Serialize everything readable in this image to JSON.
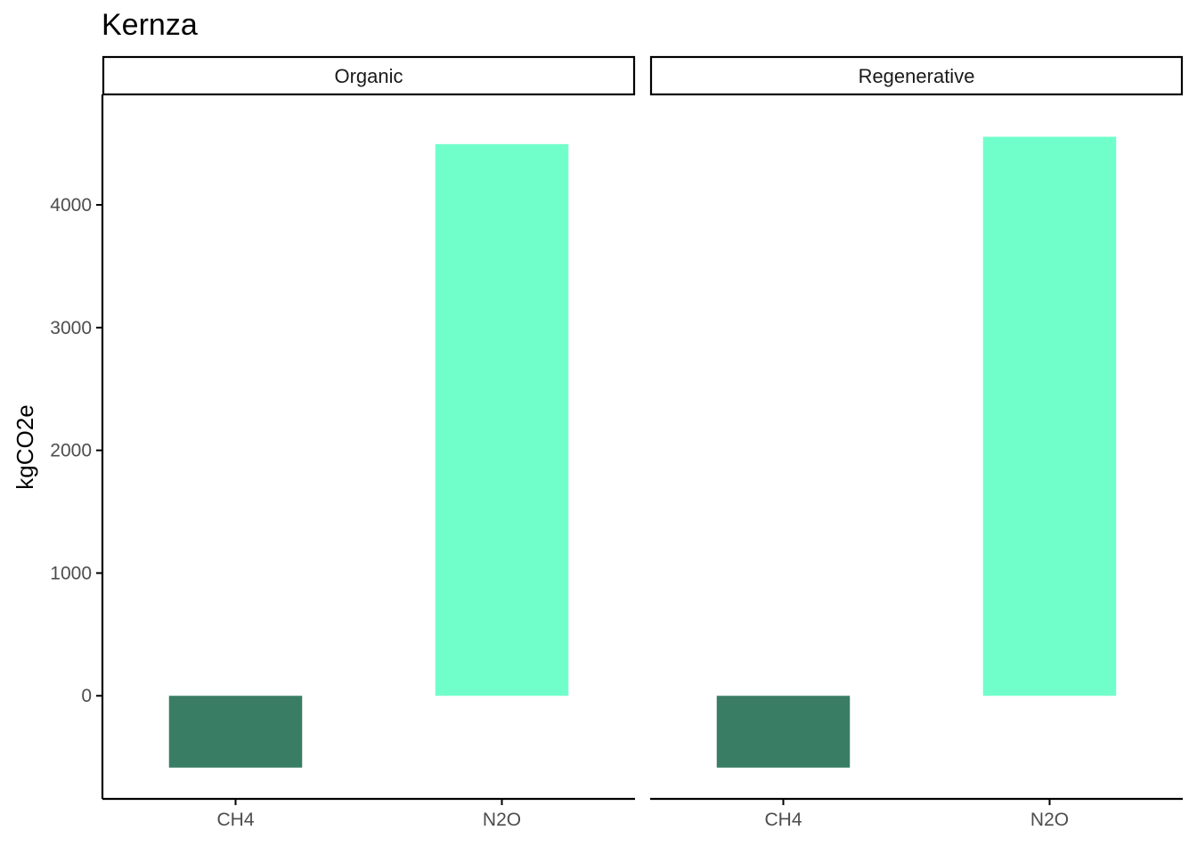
{
  "chart_data": {
    "type": "bar",
    "title": "Kernza",
    "ylabel": "kgCO2e",
    "xlabel": "",
    "ylim": [
      -840,
      4900
    ],
    "yticks": [
      0,
      1000,
      2000,
      3000,
      4000
    ],
    "categories": [
      "CH4",
      "N2O"
    ],
    "colors": {
      "CH4": "#3a7d65",
      "N2O": "#70ffcb"
    },
    "grid": false,
    "legend": "none",
    "panels": [
      {
        "label": "Organic",
        "values": [
          -585,
          4495
        ]
      },
      {
        "label": "Regenerative",
        "values": [
          -585,
          4555
        ]
      }
    ]
  }
}
